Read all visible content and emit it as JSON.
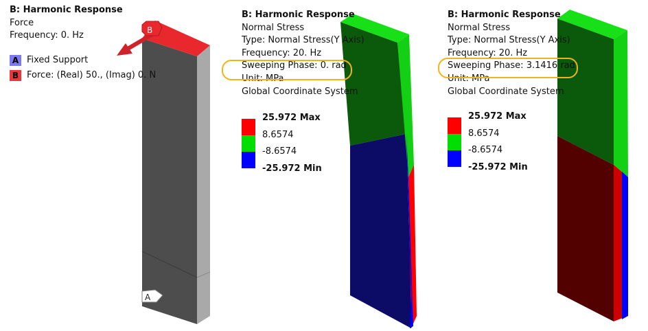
{
  "panel1": {
    "title": "B: Harmonic Response",
    "subtitle": "Force",
    "frequency": "Frequency: 0. Hz",
    "legend": [
      {
        "tag": "A",
        "label": "Fixed Support",
        "color": "#7b68ee"
      },
      {
        "tag": "B",
        "label": "Force: (Real) 50., (Imag) 0. N",
        "color": "#e8383d"
      }
    ],
    "marker_b": "B",
    "marker_a": "A"
  },
  "panel2": {
    "title": "B: Harmonic Response",
    "lines": [
      "Normal Stress",
      "Type: Normal Stress(Y Axis)",
      "Frequency: 20. Hz",
      "Sweeping Phase: 0. rad",
      "Unit: MPa",
      "Global Coordinate System"
    ],
    "scale": {
      "max": "25.972 Max",
      "v1": "8.6574",
      "v2": "-8.6574",
      "min": "-25.972 Min"
    }
  },
  "panel3": {
    "title": "B: Harmonic Response",
    "lines": [
      "Normal Stress",
      "Type: Normal Stress(Y Axis)",
      "Frequency: 20. Hz",
      "Sweeping Phase: 3.1416 rad",
      "Unit: MPa",
      "Global Coordinate System"
    ],
    "scale": {
      "max": "25.972 Max",
      "v1": "8.6574",
      "v2": "-8.6574",
      "min": "-25.972 Min"
    }
  },
  "colors": {
    "red": "#ff0000",
    "green": "#00dd00",
    "blue": "#0000ff",
    "highlight": "#f2b318"
  }
}
